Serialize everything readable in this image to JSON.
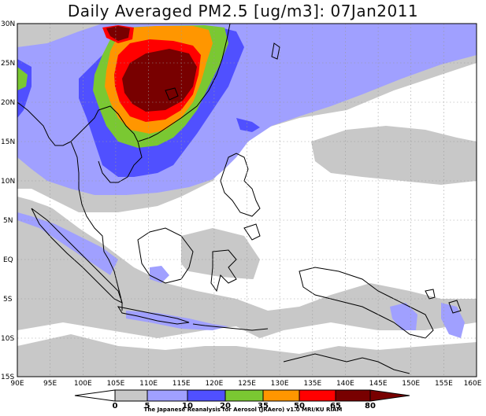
{
  "title": "Daily Averaged PM2.5 [ug/m3]: 07Jan2011",
  "credit": "The Japanese Reanalysis for Aerosol (JRAero) v1.0 MRI/KU RIAM",
  "lat_labels": [
    "30N",
    "25N",
    "20N",
    "15N",
    "10N",
    "5N",
    "EQ",
    "5S",
    "10S",
    "15S"
  ],
  "lon_labels": [
    "90E",
    "95E",
    "100E",
    "105E",
    "110E",
    "115E",
    "120E",
    "125E",
    "130E",
    "135E",
    "140E",
    "145E",
    "150E",
    "155E",
    "160E"
  ],
  "colorbar": {
    "boundaries": [
      "0",
      "5",
      "10",
      "20",
      "35",
      "50",
      "65",
      "80"
    ],
    "colors": [
      "#ffffff",
      "#c8c8c8",
      "#a0a0ff",
      "#5050ff",
      "#7ac832",
      "#ff9600",
      "#ff0000",
      "#780000"
    ]
  }
}
